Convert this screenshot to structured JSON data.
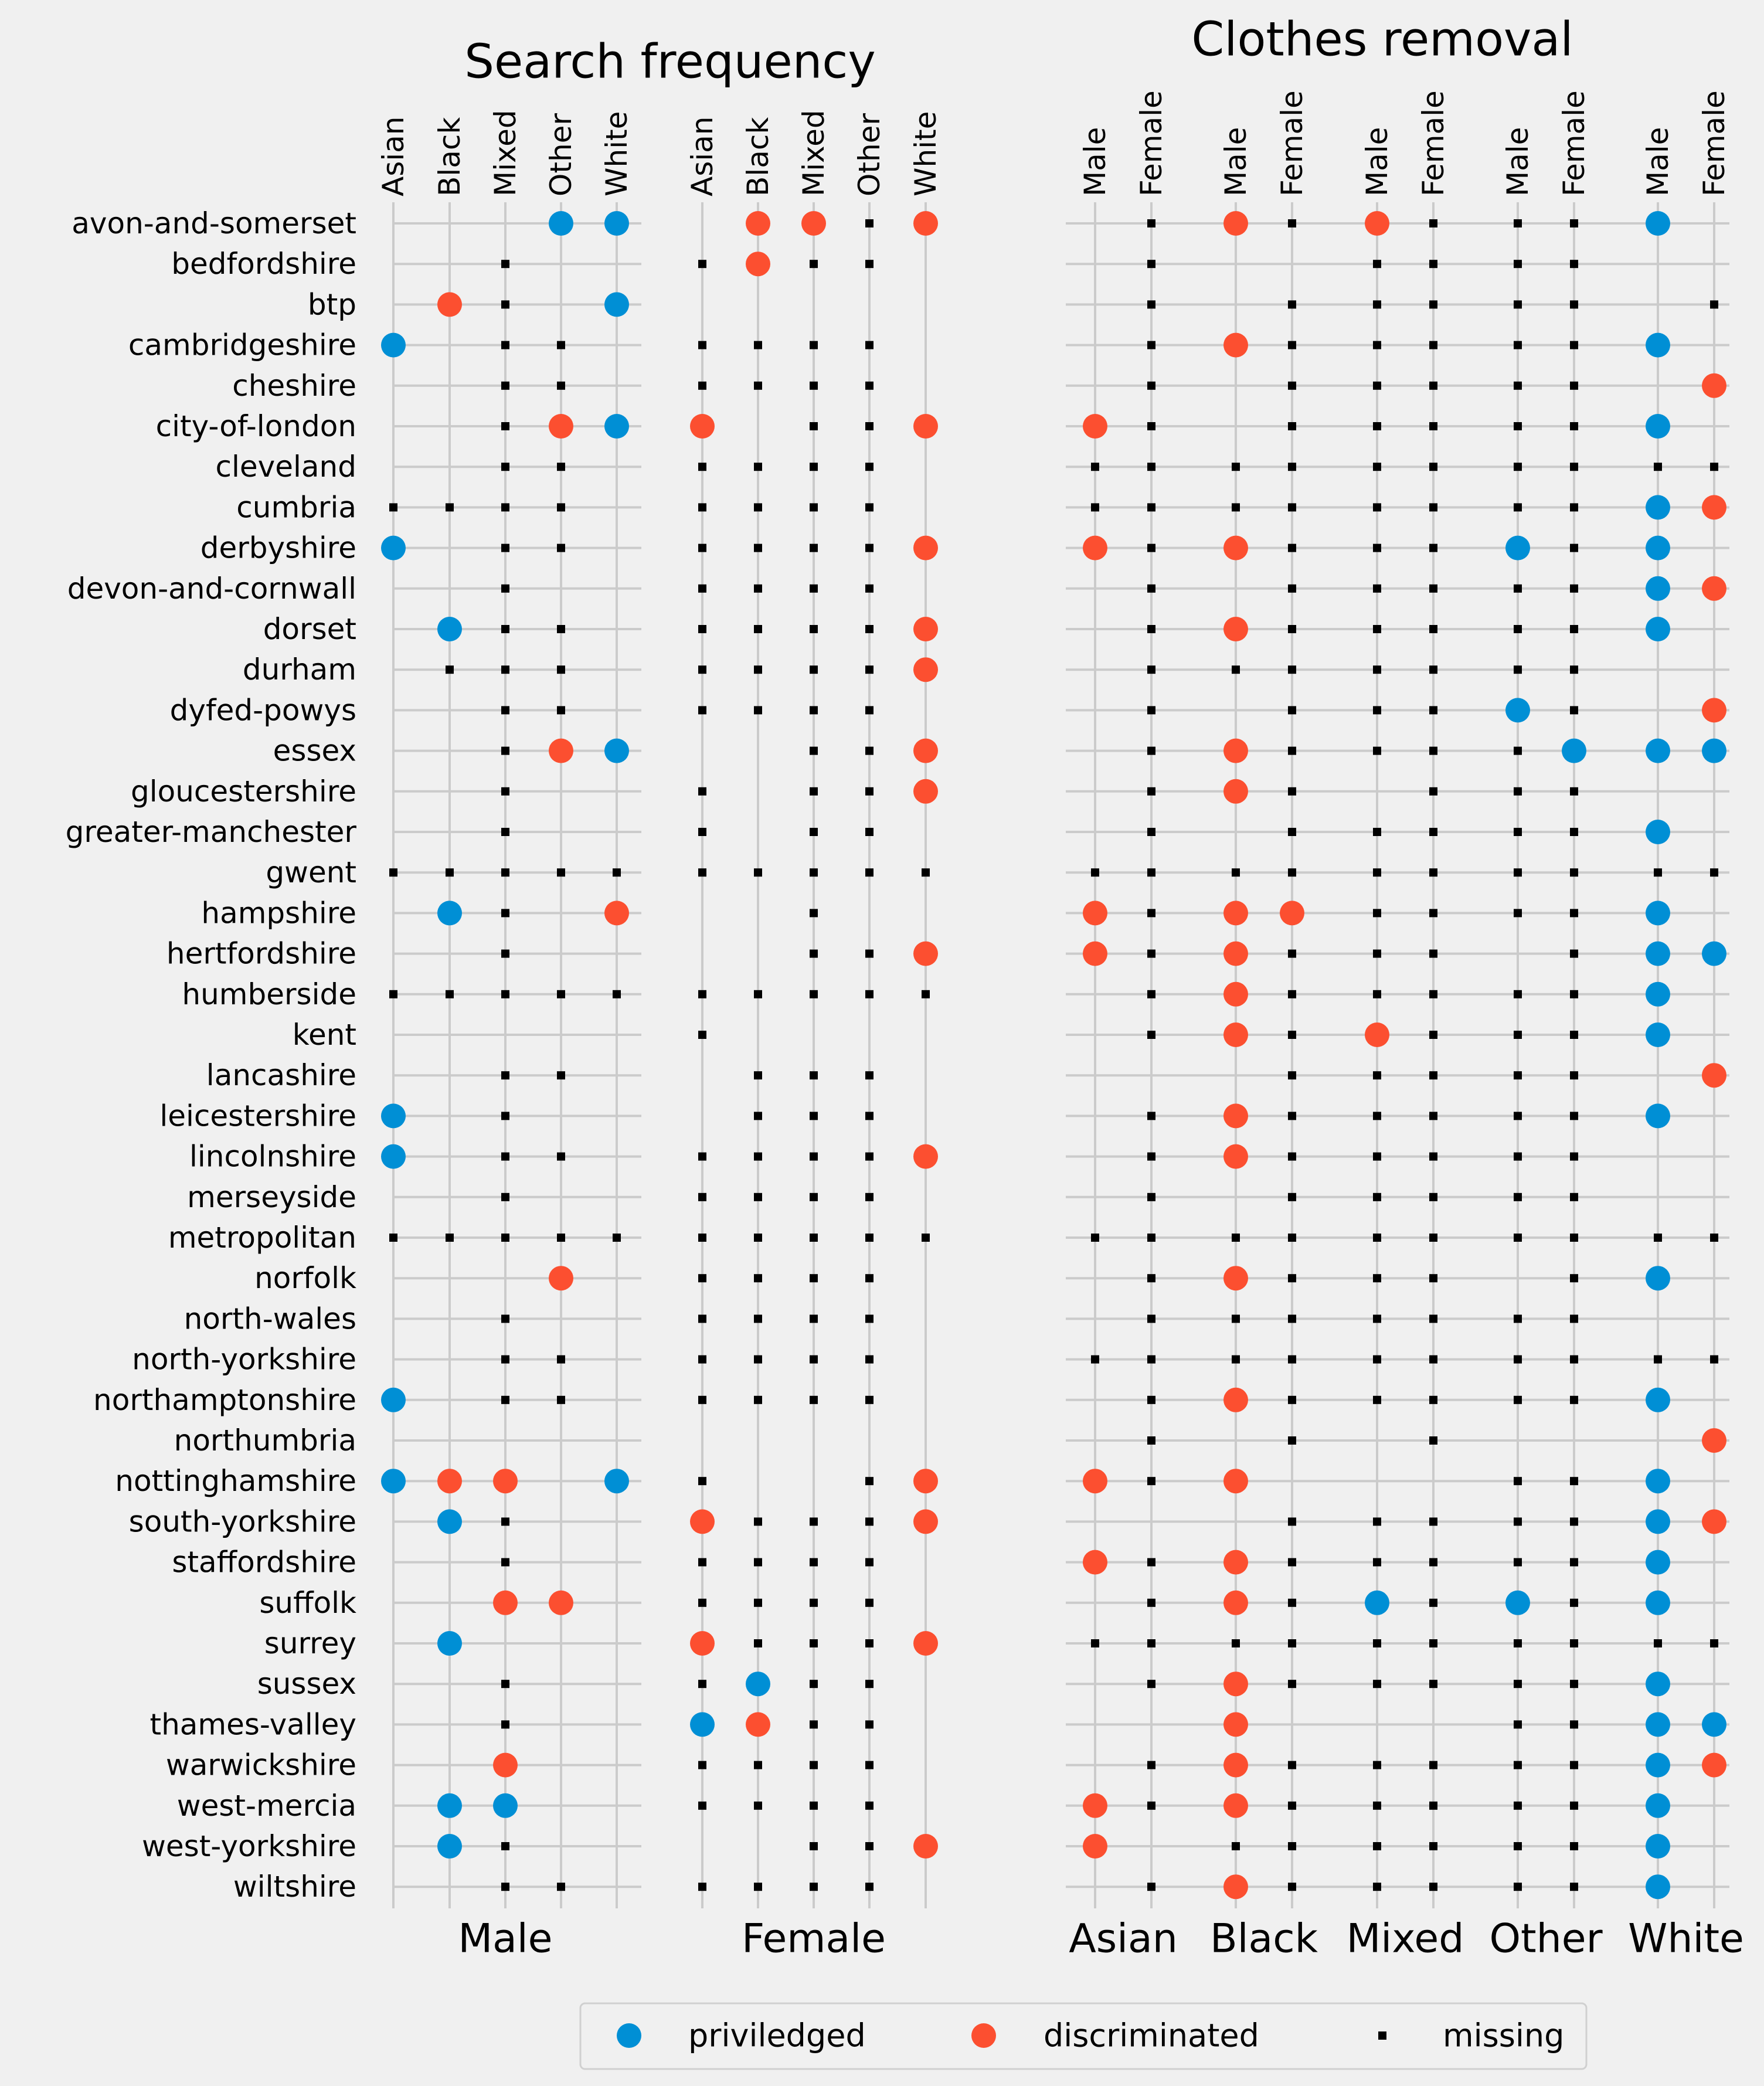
{
  "chart_data": {
    "type": "scatter",
    "forces": [
      "avon-and-somerset",
      "bedfordshire",
      "btp",
      "cambridgeshire",
      "cheshire",
      "city-of-london",
      "cleveland",
      "cumbria",
      "derbyshire",
      "devon-and-cornwall",
      "dorset",
      "durham",
      "dyfed-powys",
      "essex",
      "gloucestershire",
      "greater-manchester",
      "gwent",
      "hampshire",
      "hertfordshire",
      "humberside",
      "kent",
      "lancashire",
      "leicestershire",
      "lincolnshire",
      "merseyside",
      "metropolitan",
      "norfolk",
      "north-wales",
      "north-yorkshire",
      "northamptonshire",
      "northumbria",
      "nottinghamshire",
      "south-yorkshire",
      "staffordshire",
      "suffolk",
      "surrey",
      "sussex",
      "thames-valley",
      "warwickshire",
      "west-mercia",
      "west-yorkshire",
      "wiltshire"
    ],
    "legend": {
      "placement": "bottom-center",
      "entries": [
        {
          "key": "p",
          "label": "priviledged",
          "color": "#008fd5"
        },
        {
          "key": "d",
          "label": "discriminated",
          "color": "#fc4f30"
        },
        {
          "key": "m",
          "label": "missing",
          "color": "#000000"
        }
      ]
    },
    "panels": [
      {
        "title": "Search frequency",
        "groups": [
          "Male",
          "Female"
        ],
        "columns": [
          "Asian",
          "Black",
          "Mixed",
          "Other",
          "White",
          "Asian",
          "Black",
          "Mixed",
          "Other",
          "White"
        ],
        "rows": [
          "...pp.ddmd",
          "..m..mdmm.",
          ".dm.p.....",
          "p.mm.mmmm.",
          "..mm.mmmm.",
          "..mdpd.mmd",
          "..mm.mmmm.",
          "mmmm.mmmm.",
          "p.mm.mmmmd",
          "..m..mmmm.",
          ".pmm.mmmmd",
          ".mmm.mmmmd",
          "..mm.mmmm.",
          "..mdp..mmd",
          "..m..m.mmd",
          "..m..m.mm.",
          "mmmmmmmmmm",
          ".pm.d..m..",
          "..m....mmd",
          "mmmmmmmmmm",
          ".....m....",
          "..mm..mmm.",
          "p.m...mmm.",
          "p.mm.mmmmd",
          "..m..mmmm.",
          "mmmmmmmmmm",
          "...d.mmmm.",
          "..m..mmmm.",
          "..mm.mmmm.",
          "p.mm.mmmm.",
          "..........",
          "pdd.pm..md",
          ".pm..dmmmd",
          "..m..mmmm.",
          "..dd.mmmm.",
          ".p...dmmmd",
          "..m..mpmm.",
          "..m..pdmm.",
          "..d..mmmm.",
          ".pp..mmmm.",
          ".pm....mmd",
          "..mm.mmmm."
        ]
      },
      {
        "title": "Clothes removal",
        "groups": [
          "Asian",
          "Black",
          "Mixed",
          "Other",
          "White"
        ],
        "columns": [
          "Male",
          "Female",
          "Male",
          "Female",
          "Male",
          "Female",
          "Male",
          "Female",
          "Male",
          "Female"
        ],
        "rows": [
          ".mdmdmmmp.",
          ".m..mmmm..",
          ".m.mmmmm.m",
          ".mdmmmmmp.",
          ".m.mmmmm.d",
          "dm.mmmmmp.",
          "mmmmmmmmmm",
          "mmmmmmmmpd",
          "dmdmmmpmp.",
          ".m.mmmmmpd",
          ".mdmmmmmp.",
          ".mmmmmmm..",
          ".m.mmmpm.d",
          ".mdmmmmppp",
          ".mdm.mmm..",
          ".m.mmmmmp.",
          "mmmmmmmmmm",
          "dmddmmmmp.",
          "dmdmmm.mpp",
          ".mdmmmmmp.",
          ".mdmdmmmp.",
          "...mmmmm.d",
          ".mdmmmmmp.",
          ".mdmmmmm..",
          ".m.mmmmm..",
          "mmmmmmmmmm",
          ".mdmmm.mp.",
          ".mmmmmmm..",
          "mmmmmmmmmm",
          ".mdmmmmmp.",
          ".m.m.m...d",
          "dmd...mmp.",
          "...mmmmmpd",
          "dmdmmmmmp.",
          ".mdmpmpmp.",
          "mmmmmmmmmm",
          ".mdmmmmmp.",
          "..d...mmpp",
          ".mdmmmmmpd",
          "dmdmmmmmp.",
          "d.mmmmmmp.",
          ".mdmmmmmp."
        ]
      }
    ]
  }
}
